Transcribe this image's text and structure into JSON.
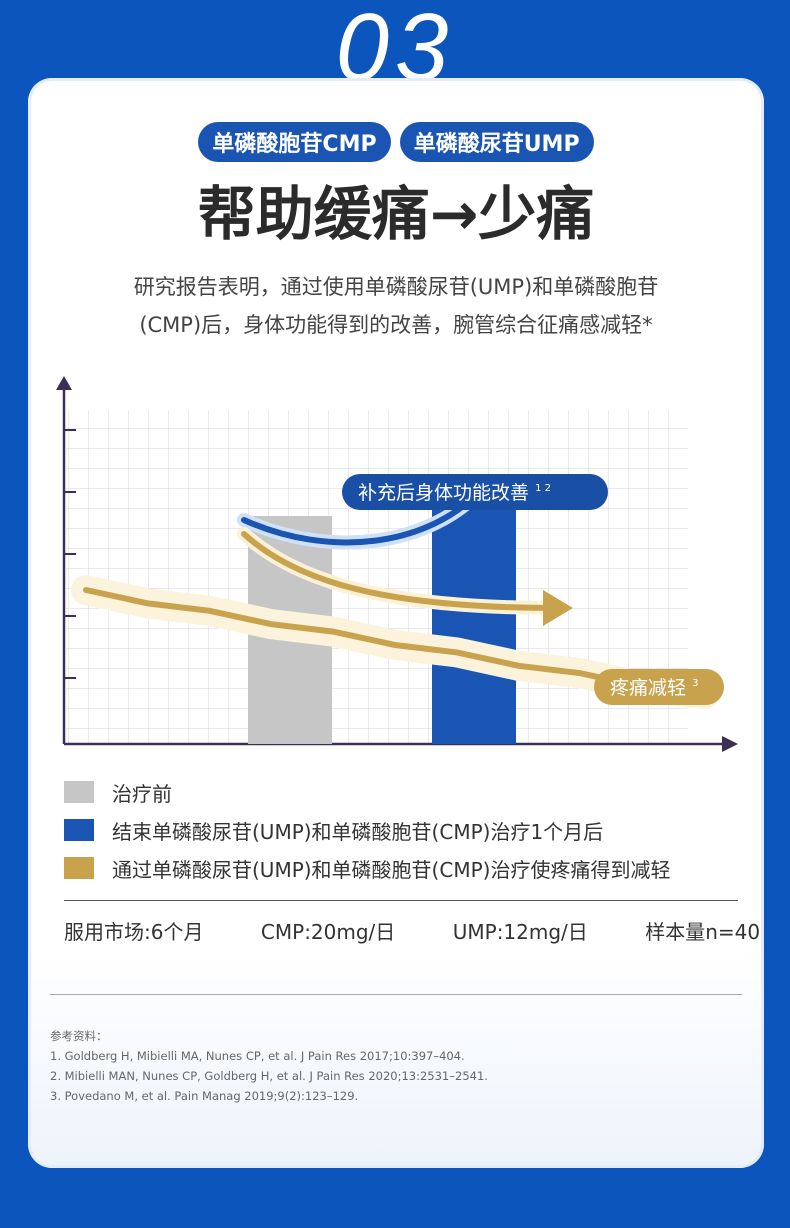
{
  "section_number": "03",
  "tags": [
    "单磷酸胞苷CMP",
    "单磷酸尿苷UMP"
  ],
  "headline": "帮助缓痛→少痛",
  "description": [
    "研究报告表明，通过使用单磷酸尿苷(UMP)和单磷酸胞苷",
    "(CMP)后，身体功能得到的改善，腕管综合征痛感减轻*"
  ],
  "chart": {
    "callout_improve": "补充后身体功能改善",
    "callout_improve_sup": "1 2",
    "callout_pain": "疼痛减轻",
    "callout_pain_sup": "3"
  },
  "chart_data": {
    "type": "bar",
    "categories": [
      "治疗前",
      "结束单磷酸尿苷(UMP)和单磷酸胞苷(CMP)治疗1个月后"
    ],
    "values": [
      3.8,
      4.5
    ],
    "ylim": [
      0,
      6
    ],
    "pain_trend": [
      0,
      0.1,
      0.2,
      0.3,
      0.4,
      0.5,
      0.6,
      0.7,
      0.8,
      0.9,
      1.0
    ],
    "colors": {
      "before": "#c6c6c6",
      "after": "#1a55b4",
      "pain": "#c9a24e"
    }
  },
  "legend": [
    {
      "label": "治疗前",
      "color": "#c6c6c6"
    },
    {
      "label": "结束单磷酸尿苷(UMP)和单磷酸胞苷(CMP)治疗1个月后",
      "color": "#1a55b4"
    },
    {
      "label": "通过单磷酸尿苷(UMP)和单磷酸胞苷(CMP)治疗使疼痛得到减轻",
      "color": "#c9a24e"
    }
  ],
  "dosing": {
    "duration": "服用市场:6个月",
    "cmp": "CMP:20mg/日",
    "ump": "UMP:12mg/日",
    "sample": "样本量n=40"
  },
  "references": {
    "title": "参考资料：",
    "items": [
      "1. Goldberg H, Mibielli MA, Nunes CP, et al. J Pain Res 2017;10:397–404.",
      "2. Mibielli MAN, Nunes CP, Goldberg H, et al. J Pain Res 2020;13:2531–2541.",
      "3. Povedano M, et al. Pain Manag 2019;9(2):123–129."
    ]
  }
}
